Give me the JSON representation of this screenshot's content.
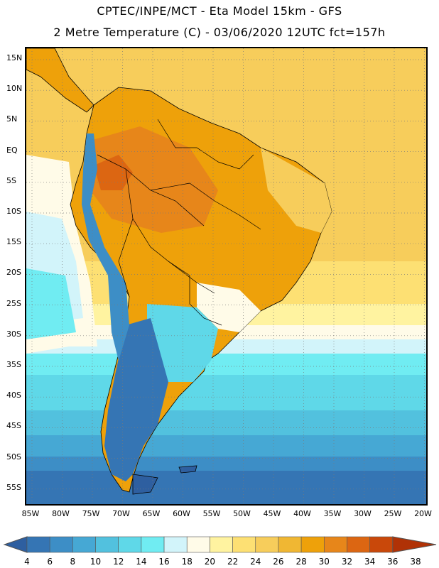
{
  "header": {
    "line1": "CPTEC/INPE/MCT -  Eta Model 15km - GFS",
    "line2": "2 Metre Temperature (C) - 03/06/2020 12UTC fct=157h"
  },
  "map": {
    "lat_ticks": [
      "15N",
      "10N",
      "5N",
      "EQ",
      "5S",
      "10S",
      "15S",
      "20S",
      "25S",
      "30S",
      "35S",
      "40S",
      "45S",
      "50S",
      "55S"
    ],
    "lon_ticks": [
      "85W",
      "80W",
      "75W",
      "70W",
      "65W",
      "60W",
      "55W",
      "50W",
      "45W",
      "40W",
      "35W",
      "30W",
      "25W",
      "20W"
    ],
    "border_color": "#000000",
    "grid_color": "#7a7a7a"
  },
  "legend": {
    "labels": [
      "4",
      "6",
      "8",
      "10",
      "12",
      "14",
      "16",
      "18",
      "20",
      "22",
      "24",
      "26",
      "28",
      "30",
      "32",
      "34",
      "36",
      "38"
    ],
    "colors": [
      "#2e5fa0",
      "#3575b4",
      "#3d8ec6",
      "#46a8d4",
      "#52c1de",
      "#5fd8e8",
      "#70ecf2",
      "#d2f4fa",
      "#fffbe8",
      "#fff3a0",
      "#fde073",
      "#f7cd5b",
      "#f0b733",
      "#eea10a",
      "#e7861a",
      "#dc6612",
      "#c9480a",
      "#b03206"
    ]
  }
}
